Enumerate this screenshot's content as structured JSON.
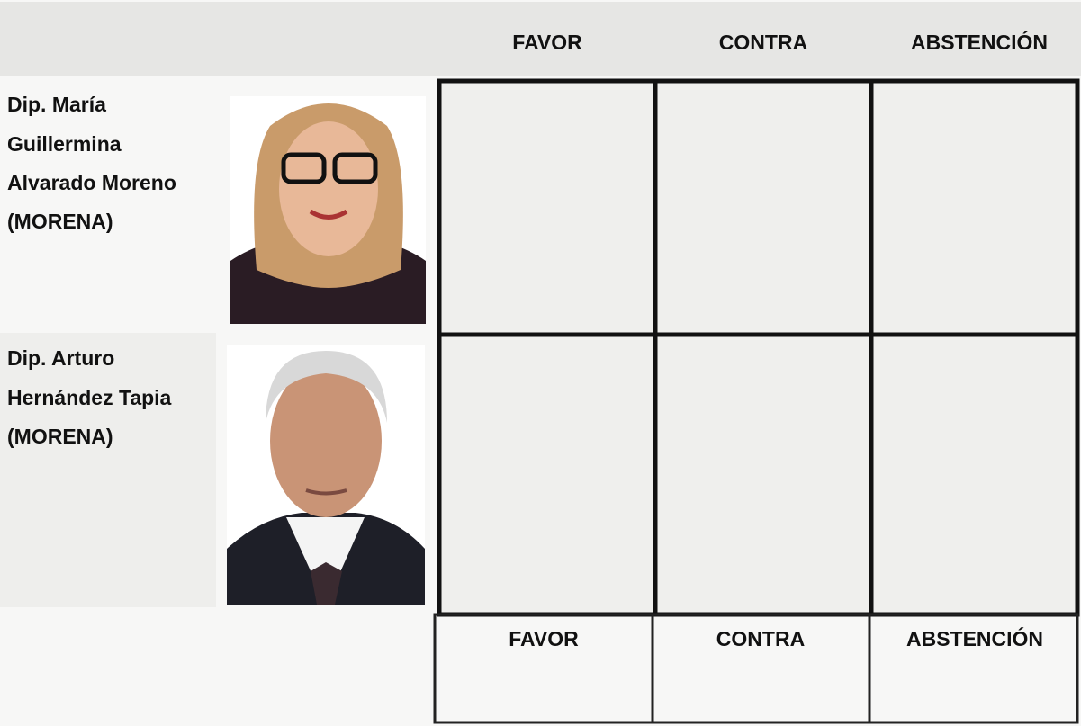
{
  "header": {
    "columns": [
      "FAVOR",
      "CONTRA",
      "ABSTENCIÓN"
    ]
  },
  "rows": [
    {
      "name_lines": [
        "Dip. María",
        "Guillermina",
        "Alvarado Moreno",
        "(MORENA)"
      ]
    },
    {
      "name_lines": [
        "Dip. Arturo",
        "Hernández Tapia",
        "(MORENA)"
      ]
    }
  ],
  "footer": {
    "columns": [
      "FAVOR",
      "CONTRA",
      "ABSTENCIÓN"
    ]
  }
}
